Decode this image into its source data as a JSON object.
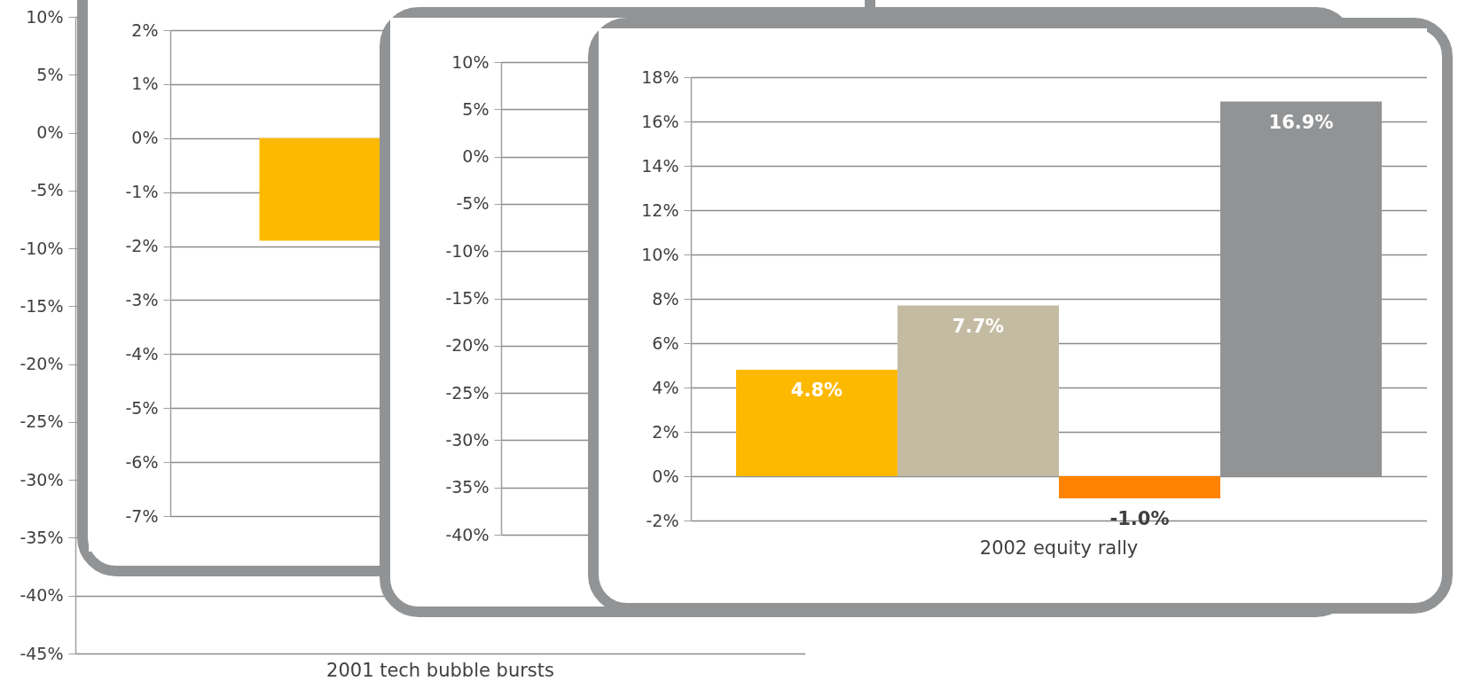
{
  "chart_data": [
    {
      "type": "bar",
      "categories": [
        "2001 tech bubble bursts"
      ],
      "values": [
        null
      ],
      "ylim": [
        -45,
        10
      ],
      "yticks": [
        {
          "value": 10,
          "label": "10%"
        },
        {
          "value": 5,
          "label": "5%"
        },
        {
          "value": 0,
          "label": "0%"
        },
        {
          "value": -5,
          "label": "-5%"
        },
        {
          "value": -10,
          "label": "-10%"
        },
        {
          "value": -15,
          "label": "-15%"
        },
        {
          "value": -20,
          "label": "-20%"
        },
        {
          "value": -25,
          "label": "-25%"
        },
        {
          "value": -30,
          "label": "-30%"
        },
        {
          "value": -35,
          "label": "-35%"
        },
        {
          "value": -40,
          "label": "-40%"
        },
        {
          "value": -45,
          "label": "-45%"
        }
      ],
      "grid": "y"
    },
    {
      "type": "bar",
      "categories": [
        null
      ],
      "series": [
        {
          "color": "#fdb900",
          "values": [
            -1.9
          ]
        }
      ],
      "ylim": [
        -7,
        2
      ],
      "yticks": [
        {
          "value": 2,
          "label": "2%"
        },
        {
          "value": 1,
          "label": "1%"
        },
        {
          "value": 0,
          "label": "0%"
        },
        {
          "value": -1,
          "label": "-1%"
        },
        {
          "value": -2,
          "label": "-2%"
        },
        {
          "value": -3,
          "label": "-3%"
        },
        {
          "value": -4,
          "label": "-4%"
        },
        {
          "value": -5,
          "label": "-5%"
        },
        {
          "value": -6,
          "label": "-6%"
        },
        {
          "value": -7,
          "label": "-7%"
        }
      ],
      "grid": "y"
    },
    {
      "type": "bar",
      "categories": [
        null
      ],
      "values": [
        null
      ],
      "ylim": [
        -40,
        10
      ],
      "yticks": [
        {
          "value": 10,
          "label": "10%"
        },
        {
          "value": 5,
          "label": "5%"
        },
        {
          "value": 0,
          "label": "0%"
        },
        {
          "value": -5,
          "label": "-5%"
        },
        {
          "value": -10,
          "label": "-10%"
        },
        {
          "value": -15,
          "label": "-15%"
        },
        {
          "value": -20,
          "label": "-20%"
        },
        {
          "value": -25,
          "label": "-25%"
        },
        {
          "value": -30,
          "label": "-30%"
        },
        {
          "value": -35,
          "label": "-35%"
        },
        {
          "value": -40,
          "label": "-40%"
        }
      ],
      "grid": "y"
    },
    {
      "type": "bar",
      "categories": [
        "2002 equity rally"
      ],
      "series": [
        {
          "color": "#fdb900",
          "values": [
            4.8
          ],
          "value_labels": [
            "4.8%"
          ]
        },
        {
          "color": "#c4bba3",
          "values": [
            7.7
          ],
          "value_labels": [
            "7.7%"
          ]
        },
        {
          "color": "#ff8200",
          "values": [
            -1.0
          ],
          "value_labels": [
            "-1.0%"
          ]
        },
        {
          "color": "#919395",
          "values": [
            16.9
          ],
          "value_labels": [
            "16.9%"
          ]
        }
      ],
      "ylim": [
        -2,
        18
      ],
      "yticks": [
        {
          "value": 18,
          "label": "18%"
        },
        {
          "value": 16,
          "label": "16%"
        },
        {
          "value": 14,
          "label": "14%"
        },
        {
          "value": 12,
          "label": "12%"
        },
        {
          "value": 10,
          "label": "10%"
        },
        {
          "value": 8,
          "label": "8%"
        },
        {
          "value": 6,
          "label": "6%"
        },
        {
          "value": 4,
          "label": "4%"
        },
        {
          "value": 2,
          "label": "2%"
        },
        {
          "value": 0,
          "label": "0%"
        },
        {
          "value": -2,
          "label": "-2%"
        }
      ],
      "grid": "y"
    }
  ]
}
